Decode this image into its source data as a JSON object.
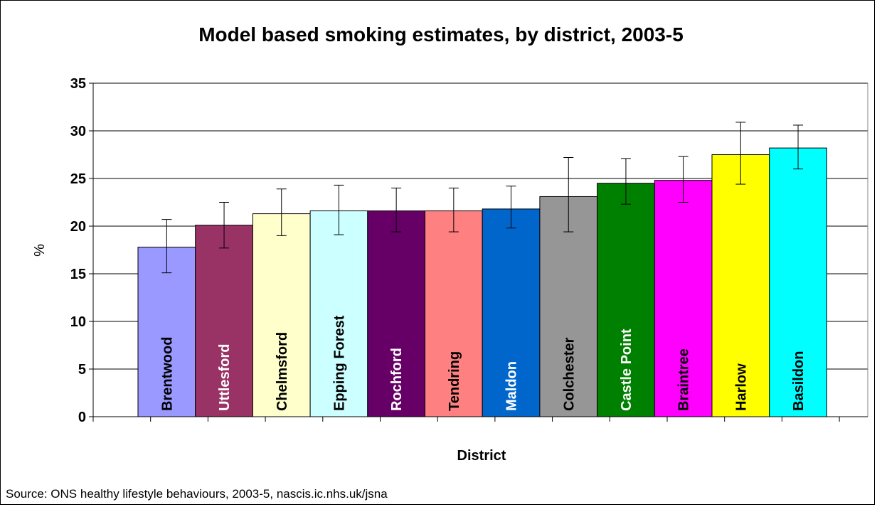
{
  "chart_data": {
    "type": "bar",
    "title": "Model based smoking estimates, by district, 2003-5",
    "xlabel": "District",
    "ylabel": "%",
    "ylim": [
      0,
      35
    ],
    "yticks": [
      0,
      5,
      10,
      15,
      20,
      25,
      30,
      35
    ],
    "grid": true,
    "legend": "none",
    "categories": [
      "Brentwood",
      "Uttlesford",
      "Chelmsford",
      "Epping Forest",
      "Rochford",
      "Tendring",
      "Maldon",
      "Colchester",
      "Castle Point",
      "Braintree",
      "Harlow",
      "Basildon"
    ],
    "series": [
      {
        "values": [
          17.8,
          20.1,
          21.3,
          21.6,
          21.6,
          21.6,
          21.8,
          23.1,
          24.5,
          24.8,
          27.5,
          28.2
        ],
        "error_low": [
          15.1,
          17.7,
          19.0,
          19.1,
          19.4,
          19.4,
          19.8,
          19.4,
          22.3,
          22.5,
          24.4,
          26.0
        ],
        "error_high": [
          20.7,
          22.5,
          23.9,
          24.3,
          24.0,
          24.0,
          24.2,
          27.2,
          27.1,
          27.3,
          30.9,
          30.6
        ]
      }
    ],
    "bar_colors": [
      "#9999FF",
      "#993366",
      "#FFFFCC",
      "#CCFFFF",
      "#660066",
      "#FF8080",
      "#0066CC",
      "#969696",
      "#008000",
      "#FF00FF",
      "#FFFF00",
      "#00FFFF"
    ],
    "label_colors": [
      "#000000",
      "#FFFFFF",
      "#000000",
      "#000000",
      "#FFFFFF",
      "#000000",
      "#FFFFFF",
      "#000000",
      "#FFFFFF",
      "#000000",
      "#000000",
      "#000000"
    ]
  },
  "source_note": "Source: ONS healthy lifestyle behaviours, 2003-5, nascis.ic.nhs.uk/jsna"
}
